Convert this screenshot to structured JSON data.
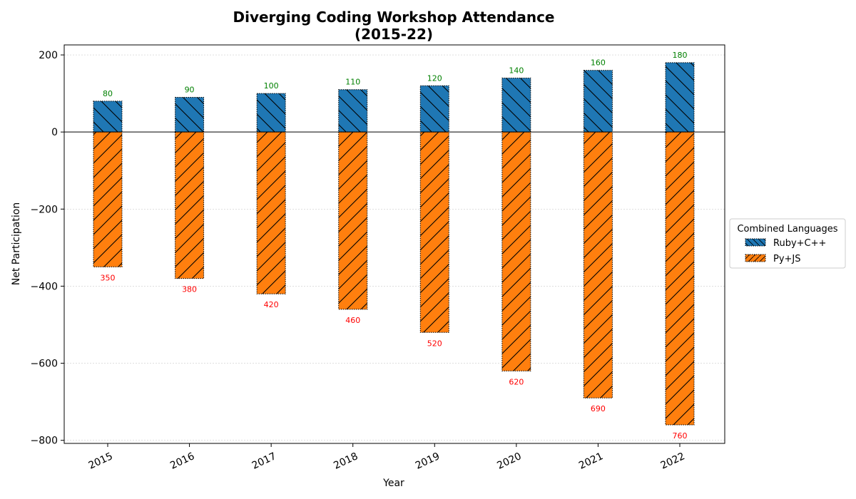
{
  "chart_data": {
    "type": "bar",
    "title": [
      "Diverging Coding Workshop Attendance",
      "(2015-22)"
    ],
    "xlabel": "Year",
    "ylabel": "Net Participation",
    "categories": [
      "2015",
      "2016",
      "2017",
      "2018",
      "2019",
      "2020",
      "2021",
      "2022"
    ],
    "series": [
      {
        "name": "Ruby+C++",
        "values": [
          80,
          90,
          100,
          110,
          120,
          140,
          160,
          180
        ],
        "color": "#1f77b4",
        "label_color": "#008000",
        "hatch": "backslash"
      },
      {
        "name": "Py+JS",
        "values": [
          -350,
          -380,
          -420,
          -460,
          -520,
          -620,
          -690,
          -760
        ],
        "color": "#ff7f0e",
        "label_color": "#ff0000",
        "hatch": "slash"
      }
    ],
    "data_labels": {
      "Ruby+C++": [
        "80",
        "90",
        "100",
        "110",
        "120",
        "140",
        "160",
        "180"
      ],
      "Py+JS": [
        "350",
        "380",
        "420",
        "460",
        "520",
        "620",
        "690",
        "760"
      ]
    },
    "ylim": [
      -808,
      226
    ],
    "yticks": [
      200,
      0,
      -200,
      -400,
      -600,
      -800
    ],
    "ytick_labels": [
      "200",
      "0",
      "−200",
      "−400",
      "−600",
      "−800"
    ],
    "grid": "horizontal-dotted",
    "zero_line": true,
    "legend": {
      "title": "Combined Languages",
      "placement": "right-outside"
    }
  }
}
